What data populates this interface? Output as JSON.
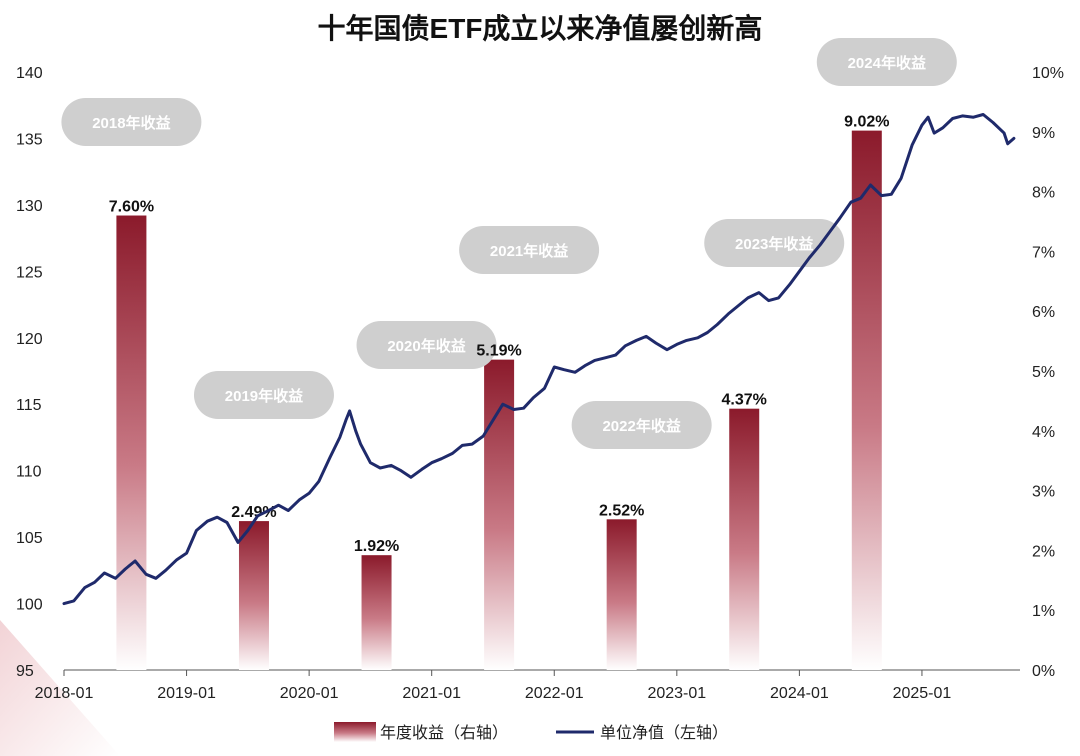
{
  "chart_data": {
    "type": "bar+line",
    "title": "十年国债ETF成立以来净值屡创新高",
    "left_axis": {
      "min": 95,
      "max": 140,
      "ticks": [
        95,
        100,
        105,
        110,
        115,
        120,
        125,
        130,
        135,
        140
      ]
    },
    "right_axis": {
      "min": 0,
      "max": 10,
      "ticks": [
        "0%",
        "1%",
        "2%",
        "3%",
        "4%",
        "5%",
        "6%",
        "7%",
        "8%",
        "9%",
        "10%"
      ]
    },
    "x_axis": {
      "ticks": [
        "2018-01",
        "2019-01",
        "2020-01",
        "2021-01",
        "2022-01",
        "2023-01",
        "2024-01",
        "2025-01"
      ]
    },
    "bars": {
      "name": "年度收益（右轴）",
      "color_top": "#8B1A2B",
      "color_bottom": "#ffffff",
      "items": [
        {
          "year": "2018",
          "date": "2018.55",
          "value": 7.6,
          "label": "7.60%",
          "callout": "2018年收益"
        },
        {
          "year": "2019",
          "date": "2019.55",
          "value": 2.49,
          "label": "2.49%",
          "callout": "2019年收益"
        },
        {
          "year": "2020",
          "date": "2020.55",
          "value": 1.92,
          "label": "1.92%",
          "callout": "2020年收益"
        },
        {
          "year": "2021",
          "date": "2021.55",
          "value": 5.19,
          "label": "5.19%",
          "callout": "2021年收益"
        },
        {
          "year": "2022",
          "date": "2022.55",
          "value": 2.52,
          "label": "2.52%",
          "callout": "2022年收益"
        },
        {
          "year": "2023",
          "date": "2023.55",
          "value": 4.37,
          "label": "4.37%",
          "callout": "2023年收益"
        },
        {
          "year": "2024",
          "date": "2024.55",
          "value": 9.02,
          "label": "9.02%",
          "callout": "2024年收益"
        }
      ]
    },
    "line": {
      "name": "单位净值（左轴）",
      "color": "#1F2A6B",
      "points": [
        [
          2018.0,
          100.0
        ],
        [
          2018.08,
          100.2
        ],
        [
          2018.17,
          101.2
        ],
        [
          2018.25,
          101.6
        ],
        [
          2018.33,
          102.3
        ],
        [
          2018.42,
          101.9
        ],
        [
          2018.5,
          102.6
        ],
        [
          2018.58,
          103.2
        ],
        [
          2018.67,
          102.2
        ],
        [
          2018.75,
          101.9
        ],
        [
          2018.83,
          102.5
        ],
        [
          2018.92,
          103.3
        ],
        [
          2019.0,
          103.8
        ],
        [
          2019.08,
          105.5
        ],
        [
          2019.17,
          106.2
        ],
        [
          2019.25,
          106.5
        ],
        [
          2019.33,
          106.1
        ],
        [
          2019.42,
          104.6
        ],
        [
          2019.5,
          105.5
        ],
        [
          2019.58,
          106.6
        ],
        [
          2019.67,
          107.0
        ],
        [
          2019.75,
          107.4
        ],
        [
          2019.83,
          107.0
        ],
        [
          2019.92,
          107.8
        ],
        [
          2020.0,
          108.3
        ],
        [
          2020.08,
          109.2
        ],
        [
          2020.17,
          111.0
        ],
        [
          2020.25,
          112.5
        ],
        [
          2020.3,
          113.8
        ],
        [
          2020.33,
          114.5
        ],
        [
          2020.38,
          113.0
        ],
        [
          2020.42,
          112.0
        ],
        [
          2020.5,
          110.6
        ],
        [
          2020.58,
          110.2
        ],
        [
          2020.67,
          110.4
        ],
        [
          2020.75,
          110.0
        ],
        [
          2020.83,
          109.5
        ],
        [
          2020.92,
          110.1
        ],
        [
          2021.0,
          110.6
        ],
        [
          2021.08,
          110.9
        ],
        [
          2021.17,
          111.3
        ],
        [
          2021.25,
          111.9
        ],
        [
          2021.33,
          112.0
        ],
        [
          2021.42,
          112.6
        ],
        [
          2021.5,
          113.8
        ],
        [
          2021.58,
          115.0
        ],
        [
          2021.67,
          114.6
        ],
        [
          2021.75,
          114.7
        ],
        [
          2021.83,
          115.5
        ],
        [
          2021.92,
          116.2
        ],
        [
          2022.0,
          117.8
        ],
        [
          2022.08,
          117.6
        ],
        [
          2022.17,
          117.4
        ],
        [
          2022.25,
          117.9
        ],
        [
          2022.33,
          118.3
        ],
        [
          2022.42,
          118.5
        ],
        [
          2022.5,
          118.7
        ],
        [
          2022.58,
          119.4
        ],
        [
          2022.67,
          119.8
        ],
        [
          2022.75,
          120.1
        ],
        [
          2022.83,
          119.6
        ],
        [
          2022.92,
          119.1
        ],
        [
          2023.0,
          119.5
        ],
        [
          2023.08,
          119.8
        ],
        [
          2023.17,
          120.0
        ],
        [
          2023.25,
          120.4
        ],
        [
          2023.33,
          121.0
        ],
        [
          2023.42,
          121.8
        ],
        [
          2023.5,
          122.4
        ],
        [
          2023.58,
          123.0
        ],
        [
          2023.67,
          123.4
        ],
        [
          2023.75,
          122.8
        ],
        [
          2023.83,
          123.0
        ],
        [
          2023.92,
          124.0
        ],
        [
          2024.0,
          125.0
        ],
        [
          2024.08,
          126.0
        ],
        [
          2024.17,
          127.0
        ],
        [
          2024.25,
          128.0
        ],
        [
          2024.33,
          129.0
        ],
        [
          2024.42,
          130.2
        ],
        [
          2024.5,
          130.5
        ],
        [
          2024.58,
          131.5
        ],
        [
          2024.67,
          130.7
        ],
        [
          2024.75,
          130.8
        ],
        [
          2024.83,
          132.0
        ],
        [
          2024.92,
          134.5
        ],
        [
          2025.0,
          136.0
        ],
        [
          2025.05,
          136.6
        ],
        [
          2025.1,
          135.4
        ],
        [
          2025.17,
          135.8
        ],
        [
          2025.25,
          136.5
        ],
        [
          2025.33,
          136.7
        ],
        [
          2025.42,
          136.6
        ],
        [
          2025.5,
          136.8
        ],
        [
          2025.58,
          136.2
        ],
        [
          2025.67,
          135.4
        ],
        [
          2025.7,
          134.6
        ],
        [
          2025.75,
          135.0
        ]
      ]
    },
    "legend": [
      {
        "type": "bar",
        "label": "年度收益（右轴）"
      },
      {
        "type": "line",
        "label": "单位净值（左轴）"
      }
    ]
  }
}
